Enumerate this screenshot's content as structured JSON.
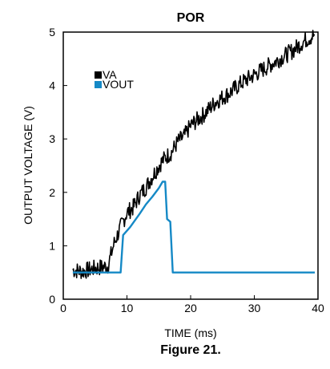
{
  "chart_data": {
    "type": "line",
    "title": "POR",
    "xlabel": "TIME (ms)",
    "ylabel": "OUTPUT VOLTAGE (V)",
    "xlim": [
      0,
      40
    ],
    "ylim": [
      0,
      5
    ],
    "xticks": [
      "0",
      "10",
      "20",
      "30",
      "40"
    ],
    "yticks": [
      "0",
      "1",
      "2",
      "3",
      "4",
      "5"
    ],
    "grid": false,
    "legend_position": "top-left",
    "series": [
      {
        "name": "VA",
        "color": "#000000",
        "x": [
          1.5,
          3,
          5,
          7,
          8,
          9,
          10,
          11,
          12,
          13,
          14,
          15,
          16,
          17,
          18,
          19,
          20,
          22,
          24,
          26,
          28,
          30,
          32,
          34,
          36,
          38,
          39.5
        ],
        "y": [
          0.55,
          0.52,
          0.58,
          0.62,
          1.05,
          1.35,
          1.62,
          1.72,
          1.95,
          2.1,
          2.3,
          2.5,
          2.65,
          2.75,
          2.95,
          3.05,
          3.25,
          3.45,
          3.7,
          3.85,
          4.05,
          4.2,
          4.35,
          4.5,
          4.65,
          4.85,
          4.95
        ],
        "noisy": true
      },
      {
        "name": "VOUT",
        "color": "#1589c6",
        "x": [
          1.5,
          9.0,
          9.4,
          10.5,
          12,
          13,
          14,
          15,
          15.6,
          16.0,
          16.3,
          16.8,
          17.2,
          39.5
        ],
        "y": [
          0.5,
          0.5,
          1.2,
          1.35,
          1.6,
          1.78,
          1.92,
          2.08,
          2.2,
          2.2,
          1.5,
          1.45,
          0.5,
          0.5
        ]
      }
    ]
  },
  "caption": "Figure 21."
}
